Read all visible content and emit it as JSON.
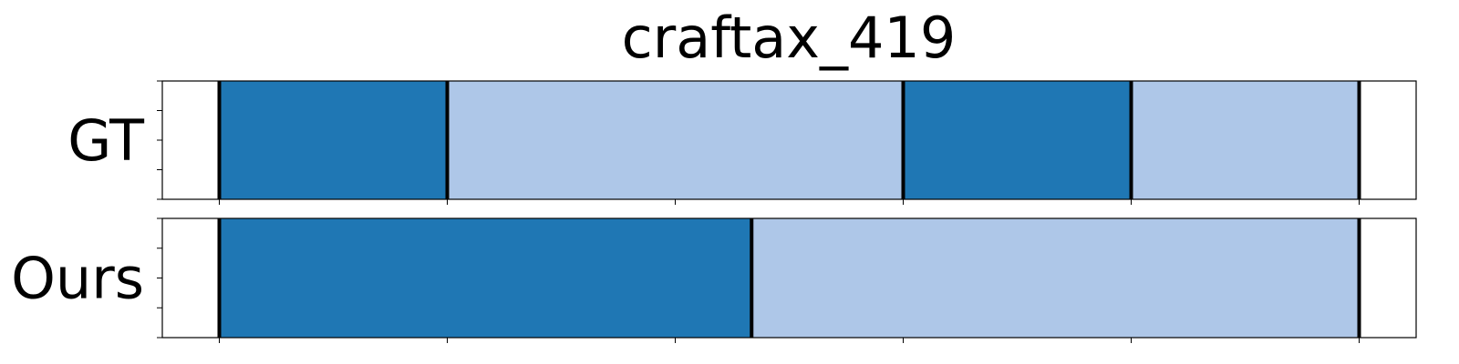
{
  "chart_data": {
    "type": "bar",
    "title": "craftax_419",
    "xlim": [
      -0.05,
      1.05
    ],
    "grid": false,
    "rows": [
      {
        "label": "GT",
        "boundaries": [
          0.0,
          0.2,
          0.6,
          0.8,
          1.0
        ],
        "segments": [
          {
            "start": 0.0,
            "end": 0.2,
            "class": 0
          },
          {
            "start": 0.2,
            "end": 0.6,
            "class": 1
          },
          {
            "start": 0.6,
            "end": 0.8,
            "class": 0
          },
          {
            "start": 0.8,
            "end": 1.0,
            "class": 1
          }
        ]
      },
      {
        "label": "Ours",
        "boundaries": [
          0.0,
          0.467,
          1.0
        ],
        "segments": [
          {
            "start": 0.0,
            "end": 0.467,
            "class": 0
          },
          {
            "start": 0.467,
            "end": 1.0,
            "class": 1
          }
        ]
      }
    ],
    "class_colors": [
      "#1f77b4",
      "#aec7e8"
    ],
    "boundary_color": "#000000"
  }
}
